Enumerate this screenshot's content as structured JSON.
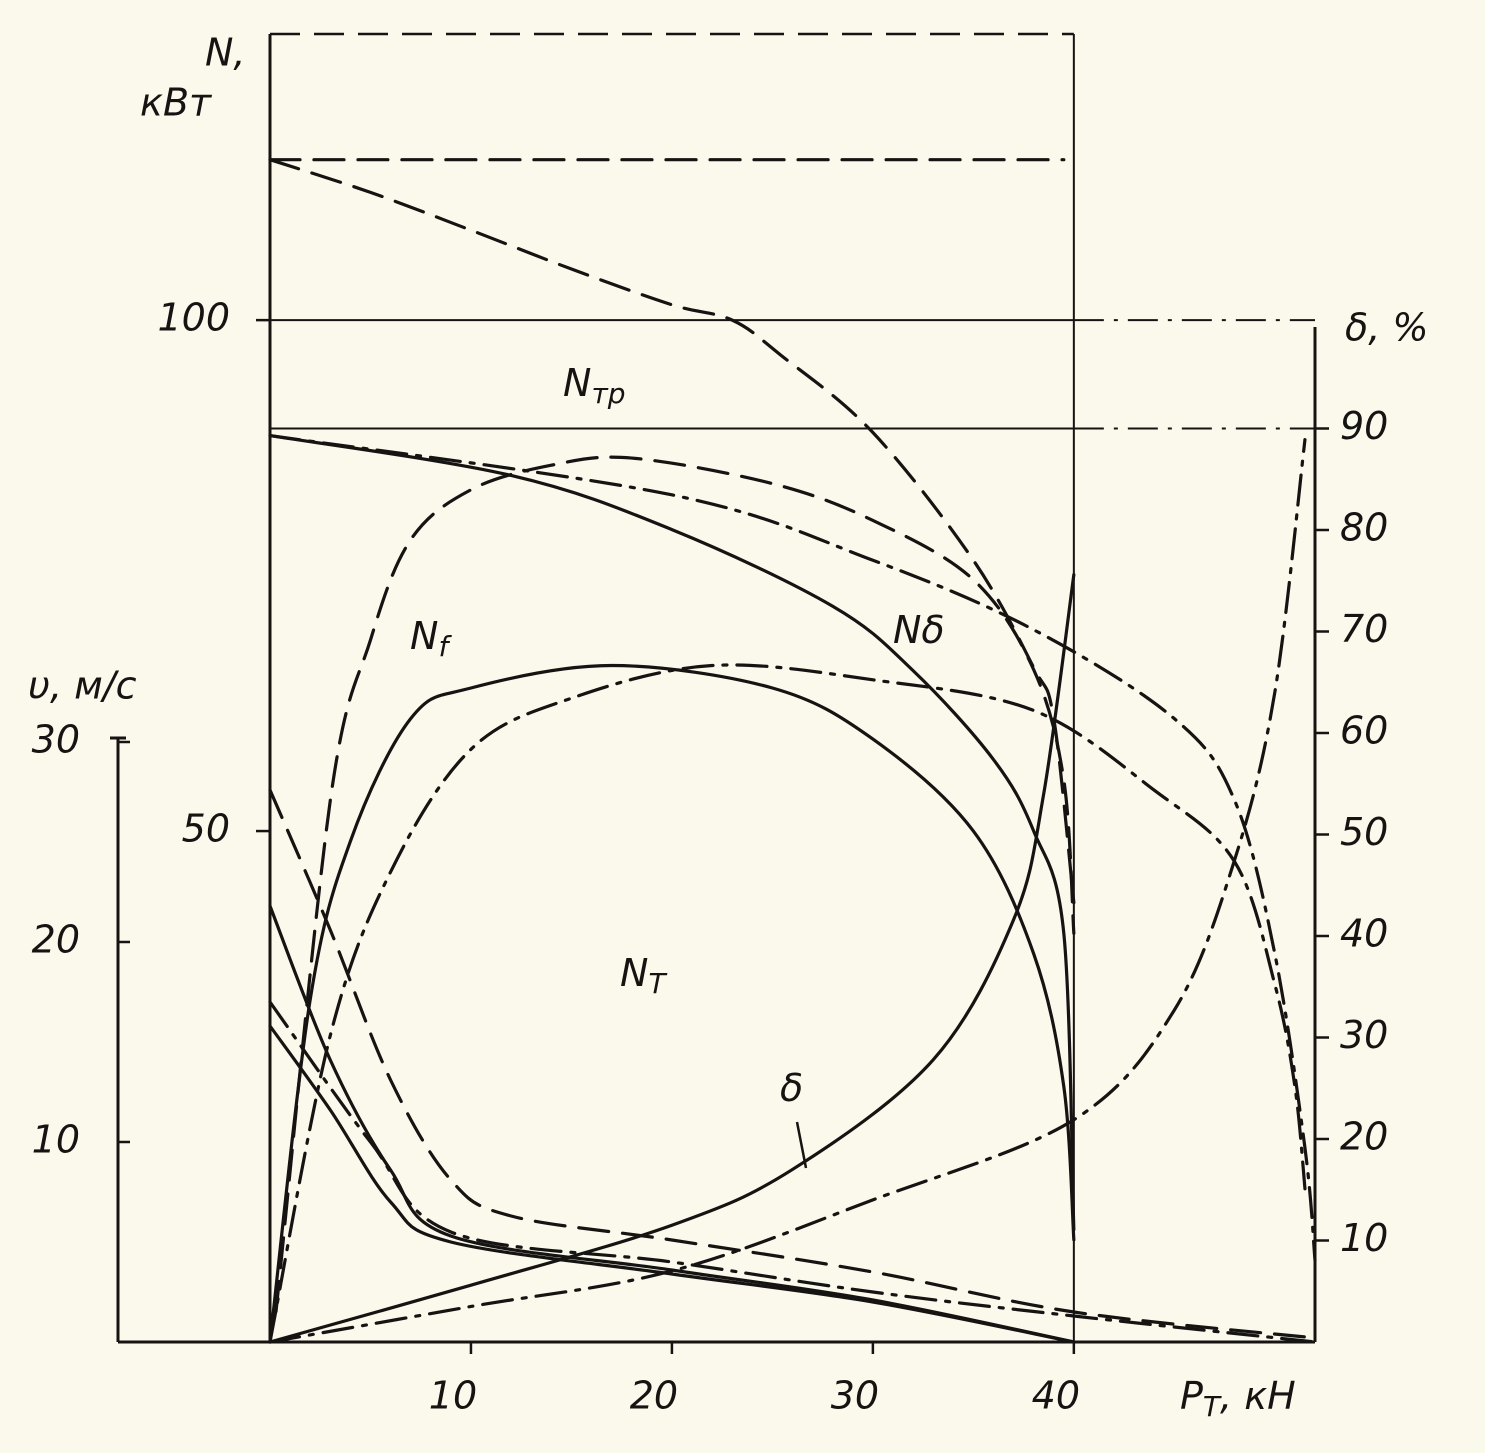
{
  "chart_data": {
    "type": "line",
    "ylabel": [
      "N,",
      "кВт"
    ],
    "y2label": "δ, %",
    "y3label": "υ, м/с",
    "xlabel": {
      "main": "P",
      "sub": "T",
      "unit": ", кН"
    },
    "xlim": [
      0,
      52
    ],
    "xticks": [
      10,
      20,
      30,
      40
    ],
    "ylim": [
      0,
      128
    ],
    "yticks": [
      50,
      100
    ],
    "y2lim": [
      0,
      100
    ],
    "y2ticks": [
      10,
      20,
      30,
      40,
      50,
      60,
      70,
      80,
      90
    ],
    "y3lim": [
      0,
      30
    ],
    "y3ticks": [
      10,
      20,
      30
    ],
    "color": "#161412",
    "hlines": [
      {
        "value": 100,
        "axis": "y"
      },
      {
        "value": 90,
        "axis": "y2"
      }
    ],
    "series": [
      {
        "axis": "y",
        "style": "dashed",
        "x": [
          0,
          39.5
        ],
        "values": [
          115.7,
          115.7
        ]
      },
      {
        "axis": "y",
        "style": "dashed",
        "x": [
          0,
          5,
          10,
          15,
          20,
          23,
          25.4,
          30,
          35,
          38,
          39,
          40
        ],
        "values": [
          115.7,
          112.5,
          108.8,
          105,
          101.5,
          100,
          96.6,
          89,
          76.5,
          66,
          61,
          43
        ]
      },
      {
        "axis": "y",
        "style": "solid",
        "x": [
          0,
          12,
          20,
          28,
          32,
          36,
          38,
          39.5,
          40
        ],
        "values": [
          88.7,
          84.8,
          79.5,
          72,
          65.7,
          57,
          50,
          40,
          11
        ]
      },
      {
        "axis": "y",
        "style": "dashdot",
        "x": [
          0,
          20,
          30,
          38,
          45,
          48,
          50,
          51.5,
          52
        ],
        "values": [
          88.7,
          82.9,
          76.5,
          69.7,
          61,
          53,
          38,
          19,
          8
        ]
      },
      {
        "axis": "y",
        "style": "dashed",
        "x": [
          0.3,
          3,
          5,
          7,
          10,
          14,
          18,
          25,
          30,
          35,
          38,
          39.5,
          40
        ],
        "values": [
          3,
          53,
          68.7,
          78.5,
          83.4,
          85.8,
          86.5,
          84,
          80.4,
          74.6,
          65.8,
          55,
          40
        ]
      },
      {
        "axis": "y",
        "style": "solid",
        "x": [
          0,
          2,
          4,
          7,
          10,
          17,
          25,
          30,
          35,
          38,
          39.5,
          40
        ],
        "values": [
          0,
          33.5,
          49,
          61,
          64,
          66.2,
          64,
          59,
          50,
          38,
          25,
          10
        ]
      },
      {
        "axis": "y",
        "style": "dashdot",
        "x": [
          0,
          3,
          6,
          10,
          15,
          22,
          30,
          38,
          44,
          48,
          50,
          51,
          51.5
        ],
        "values": [
          0,
          30,
          46,
          58,
          63,
          66.2,
          64.8,
          61.8,
          54,
          47,
          35,
          25,
          15
        ]
      },
      {
        "axis": "y2",
        "style": "solid",
        "x": [
          0,
          10,
          20,
          26,
          33,
          37,
          38.5,
          40
        ],
        "values": [
          0,
          5.6,
          11.5,
          17,
          27.8,
          41.6,
          54,
          75.6
        ]
      },
      {
        "axis": "y2",
        "style": "dashdot",
        "x": [
          0,
          10,
          20,
          30,
          40,
          45,
          48,
          50,
          51.5
        ],
        "values": [
          0,
          3.5,
          7,
          14,
          21.9,
          32.7,
          47.5,
          64,
          88.9
        ]
      },
      {
        "axis": "y3",
        "style": "solid",
        "x": [
          0,
          3,
          6,
          9,
          20,
          30,
          40
        ],
        "values": [
          21.8,
          14.1,
          8.6,
          5.3,
          3.6,
          2.1,
          0
        ]
      },
      {
        "axis": "y3",
        "style": "solid",
        "x": [
          0,
          3,
          6,
          9,
          20,
          30,
          40
        ],
        "values": [
          15.8,
          11.6,
          7,
          5,
          3.4,
          2,
          0
        ]
      },
      {
        "axis": "y3",
        "style": "dashed",
        "x": [
          0,
          3,
          6,
          9,
          12,
          20,
          30,
          40,
          52
        ],
        "values": [
          27.6,
          20.6,
          13.1,
          8.1,
          6.3,
          5.1,
          3.5,
          1.5,
          0.2
        ]
      },
      {
        "axis": "y3",
        "style": "dashdot",
        "x": [
          0,
          5,
          9,
          20,
          30,
          40,
          52
        ],
        "values": [
          17,
          10,
          5.5,
          4,
          2.5,
          1.3,
          0
        ]
      }
    ],
    "annotations": [
      {
        "text": "N",
        "sub": "тр"
      },
      {
        "text": "N",
        "sub": "f"
      },
      {
        "text": "Nδ"
      },
      {
        "text": "N",
        "sub": "T"
      },
      {
        "text": "δ"
      }
    ]
  }
}
